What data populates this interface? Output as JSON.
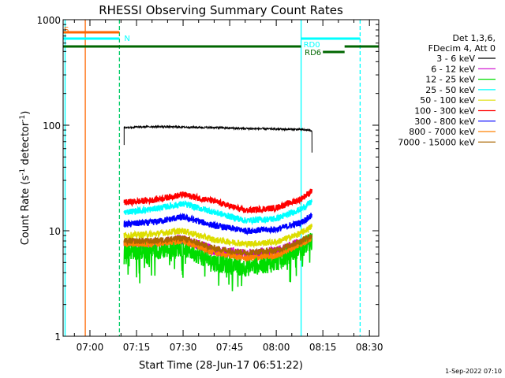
{
  "chart_data": {
    "type": "line",
    "title": "RHESSI Observing Summary Count Rates",
    "xlabel": "Start Time (28-Jun-17 06:51:22)",
    "ylabel_main": "Count Rate (s",
    "ylabel_sup1": "-1",
    "ylabel_mid": " detector",
    "ylabel_sup2": "-1",
    "ylabel_end": ")",
    "y_scale": "log",
    "ylim": [
      1,
      1000
    ],
    "xlim": [
      "06:51:22",
      "08:33:00"
    ],
    "x_ticks": [
      "07:00",
      "07:15",
      "07:30",
      "07:45",
      "08:00",
      "08:15",
      "08:30"
    ],
    "y_ticks": [
      "1",
      "10",
      "100",
      "1000"
    ],
    "legend_header": [
      "Det 1,3,6,",
      "FDecim 4, Att 0"
    ],
    "legend_position": "right",
    "grid": false,
    "footer": "1-Sep-2022 07:10",
    "series": [
      {
        "name": "3 - 6 keV",
        "color": "#000000",
        "values": [
          [
            "07:11:00",
            95
          ],
          [
            "07:20:00",
            97
          ],
          [
            "07:30:00",
            96
          ],
          [
            "07:40:00",
            95
          ],
          [
            "07:50:00",
            93
          ],
          [
            "08:00:00",
            92
          ],
          [
            "08:08:00",
            91
          ],
          [
            "08:11:30",
            89
          ]
        ]
      },
      {
        "name": "6 - 12 keV",
        "color": "#cc00cc",
        "values": [
          [
            "07:11:00",
            7.5
          ],
          [
            "07:20:00",
            7.5
          ],
          [
            "07:30:00",
            8.2
          ],
          [
            "07:40:00",
            6.5
          ],
          [
            "07:50:00",
            6.0
          ],
          [
            "08:00:00",
            6.3
          ],
          [
            "08:08:00",
            7.8
          ],
          [
            "08:11:30",
            8.5
          ]
        ]
      },
      {
        "name": "12 - 25 keV",
        "color": "#00dd00",
        "values": [
          [
            "07:11:00",
            6.5
          ],
          [
            "07:20:00",
            6.5
          ],
          [
            "07:30:00",
            7.0
          ],
          [
            "07:40:00",
            5.0
          ],
          [
            "07:50:00",
            4.5
          ],
          [
            "08:00:00",
            5.0
          ],
          [
            "08:08:00",
            7.0
          ],
          [
            "08:11:30",
            8.0
          ]
        ]
      },
      {
        "name": "25 - 50 keV",
        "color": "#00ffff",
        "values": [
          [
            "07:11:00",
            15
          ],
          [
            "07:20:00",
            16
          ],
          [
            "07:30:00",
            18
          ],
          [
            "07:40:00",
            15
          ],
          [
            "07:50:00",
            12.5
          ],
          [
            "08:00:00",
            13
          ],
          [
            "08:08:00",
            16
          ],
          [
            "08:11:30",
            19
          ]
        ]
      },
      {
        "name": "50 - 100 keV",
        "color": "#dddd00",
        "values": [
          [
            "07:11:00",
            9
          ],
          [
            "07:20:00",
            9.3
          ],
          [
            "07:30:00",
            10
          ],
          [
            "07:40:00",
            8.2
          ],
          [
            "07:50:00",
            7.5
          ],
          [
            "08:00:00",
            7.8
          ],
          [
            "08:08:00",
            9.5
          ],
          [
            "08:11:30",
            11
          ]
        ]
      },
      {
        "name": "100 - 300 keV",
        "color": "#ff0000",
        "values": [
          [
            "07:11:00",
            18.5
          ],
          [
            "07:20:00",
            19.5
          ],
          [
            "07:30:00",
            22
          ],
          [
            "07:40:00",
            19
          ],
          [
            "07:50:00",
            15.5
          ],
          [
            "08:00:00",
            16.5
          ],
          [
            "08:08:00",
            20
          ],
          [
            "08:11:30",
            24
          ]
        ]
      },
      {
        "name": "300 - 800 keV",
        "color": "#0000ff",
        "values": [
          [
            "07:11:00",
            11.5
          ],
          [
            "07:20:00",
            12
          ],
          [
            "07:30:00",
            13.5
          ],
          [
            "07:40:00",
            11.2
          ],
          [
            "07:50:00",
            10
          ],
          [
            "08:00:00",
            10.3
          ],
          [
            "08:08:00",
            12
          ],
          [
            "08:11:30",
            14
          ]
        ]
      },
      {
        "name": "800 - 7000 keV",
        "color": "#ff8000",
        "values": [
          [
            "07:11:00",
            7.5
          ],
          [
            "07:20:00",
            7.5
          ],
          [
            "07:30:00",
            8
          ],
          [
            "07:40:00",
            6.2
          ],
          [
            "07:50:00",
            5.5
          ],
          [
            "08:00:00",
            5.8
          ],
          [
            "08:08:00",
            7.5
          ],
          [
            "08:11:30",
            8.5
          ]
        ]
      },
      {
        "name": "7000 - 15000 keV",
        "color": "#aa6600",
        "values": [
          [
            "07:11:00",
            8
          ],
          [
            "07:20:00",
            8
          ],
          [
            "07:30:00",
            8.5
          ],
          [
            "07:40:00",
            6.8
          ],
          [
            "07:50:00",
            6.2
          ],
          [
            "08:00:00",
            6.5
          ],
          [
            "08:08:00",
            8
          ],
          [
            "08:11:30",
            9
          ]
        ]
      }
    ],
    "flag_bars": [
      {
        "label": "S",
        "color": "#ff6600",
        "x_start": "06:51:22",
        "x_end": "07:09:30",
        "level": "top"
      },
      {
        "label": "N",
        "color": "#00ffff",
        "x_start": "06:51:22",
        "x_end": "07:09:30",
        "level": "second"
      },
      {
        "label": "",
        "color": "#006600",
        "x_start": "06:51:22",
        "x_end": "08:08:00",
        "level": "third"
      },
      {
        "label": "RD0",
        "color": "#00ffff",
        "x_start": "08:08:00",
        "x_end": "08:27:00",
        "level": "second"
      },
      {
        "label": "RD6",
        "color": "#006600",
        "x_start": "08:15:00",
        "x_end": "08:22:00",
        "level": "fourth"
      },
      {
        "label": "",
        "color": "#006600",
        "x_start": "08:22:00",
        "x_end": "08:33:00",
        "level": "third"
      }
    ],
    "vertical_markers": [
      {
        "time": "06:52:00",
        "color": "#00ffff",
        "style": "solid"
      },
      {
        "time": "06:58:30",
        "color": "#ff6600",
        "style": "solid"
      },
      {
        "time": "07:09:30",
        "color": "#00cc66",
        "style": "dashed"
      },
      {
        "time": "08:08:00",
        "color": "#00ffff",
        "style": "solid"
      },
      {
        "time": "08:27:00",
        "color": "#00ffff",
        "style": "dashed"
      }
    ]
  }
}
